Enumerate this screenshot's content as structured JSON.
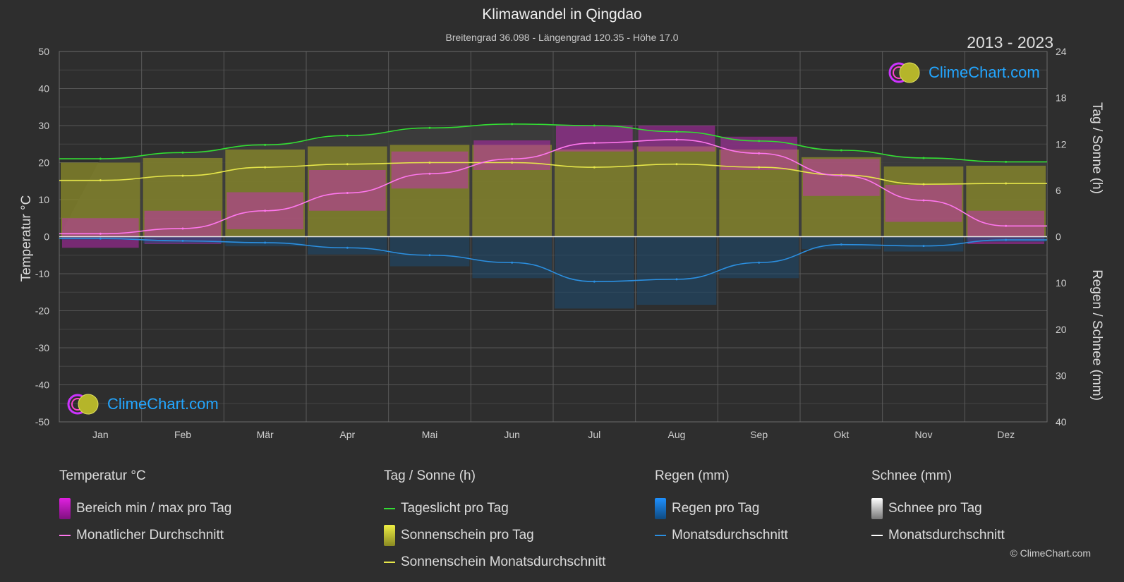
{
  "header": {
    "title": "Klimawandel in Qingdao",
    "subtitle": "Breitengrad 36.098 - Längengrad 120.35 - Höhe 17.0",
    "years": "2013 - 2023"
  },
  "logo_text": "ClimeChart.com",
  "copyright": "© ClimeChart.com",
  "legend": [
    {
      "title": "Temperatur °C",
      "items": [
        {
          "label": "Bereich min / max pro Tag",
          "kind": "box",
          "color": "#e020e0"
        },
        {
          "label": "Monatlicher Durchschnitt",
          "kind": "line",
          "color": "#ff77ee"
        }
      ]
    },
    {
      "title": "Tag / Sonne (h)",
      "items": [
        {
          "label": "Tageslicht pro Tag",
          "kind": "line",
          "color": "#33dd33"
        },
        {
          "label": "Sonnenschein pro Tag",
          "kind": "box",
          "color": "#cccc33"
        },
        {
          "label": "Sonnenschein Monatsdurchschnitt",
          "kind": "line",
          "color": "#e6e64a"
        }
      ]
    },
    {
      "title": "Regen (mm)",
      "items": [
        {
          "label": "Regen pro Tag",
          "kind": "box",
          "color": "#1e90ff"
        },
        {
          "label": "Monatsdurchschnitt",
          "kind": "line",
          "color": "#2b8fe0"
        }
      ]
    },
    {
      "title": "Schnee (mm)",
      "items": [
        {
          "label": "Schnee pro Tag",
          "kind": "box",
          "color": "#eeeeee"
        },
        {
          "label": "Monatsdurchschnitt",
          "kind": "line",
          "color": "#ffffff"
        }
      ]
    }
  ],
  "chart_data": {
    "type": "line",
    "categories": [
      "Jan",
      "Feb",
      "Mär",
      "Apr",
      "Mai",
      "Jun",
      "Jul",
      "Aug",
      "Sep",
      "Okt",
      "Nov",
      "Dez"
    ],
    "axes": {
      "left": {
        "label": "Temperatur °C",
        "ticks": [
          50,
          40,
          30,
          20,
          10,
          0,
          -10,
          -20,
          -30,
          -40,
          -50
        ],
        "range": [
          -50,
          50
        ]
      },
      "right_top": {
        "label": "Tag / Sonne (h)",
        "ticks": [
          24,
          18,
          12,
          6,
          0
        ],
        "range": [
          0,
          24
        ]
      },
      "right_bottom": {
        "label": "Regen / Schnee (mm)",
        "ticks": [
          0,
          10,
          20,
          30,
          40
        ],
        "range": [
          0,
          40
        ]
      }
    },
    "series": [
      {
        "name": "Tageslicht pro Tag",
        "axis": "right_top",
        "color": "#33dd33",
        "values": [
          10.1,
          10.9,
          11.9,
          13.1,
          14.1,
          14.6,
          14.4,
          13.6,
          12.4,
          11.2,
          10.2,
          9.7
        ]
      },
      {
        "name": "Sonnenschein Monatsdurchschnitt",
        "axis": "right_top",
        "color": "#e6e64a",
        "values": [
          7.3,
          7.9,
          9.0,
          9.4,
          9.6,
          9.6,
          9.0,
          9.4,
          9.0,
          8.0,
          6.8,
          6.9
        ]
      },
      {
        "name": "Monatlicher Durchschnitt",
        "axis": "left",
        "color": "#ff77ee",
        "values": [
          0.8,
          2.2,
          7.0,
          11.8,
          17.0,
          21.0,
          25.3,
          26.2,
          22.5,
          16.5,
          9.8,
          2.9
        ]
      },
      {
        "name": "Regen Monatsdurchschnitt",
        "axis": "right_bottom",
        "color": "#2b8fe0",
        "values": [
          0.4,
          0.9,
          1.3,
          2.4,
          4.0,
          5.6,
          9.7,
          9.2,
          5.6,
          1.7,
          2.0,
          0.7
        ]
      }
    ],
    "bands": {
      "temp_min": [
        -3,
        -2,
        2,
        7,
        13,
        18,
        23,
        23,
        18,
        11,
        4,
        -2
      ],
      "temp_max": [
        5,
        7,
        12,
        18,
        23,
        26,
        30,
        30,
        27,
        21,
        14,
        7
      ]
    },
    "grid": true
  }
}
